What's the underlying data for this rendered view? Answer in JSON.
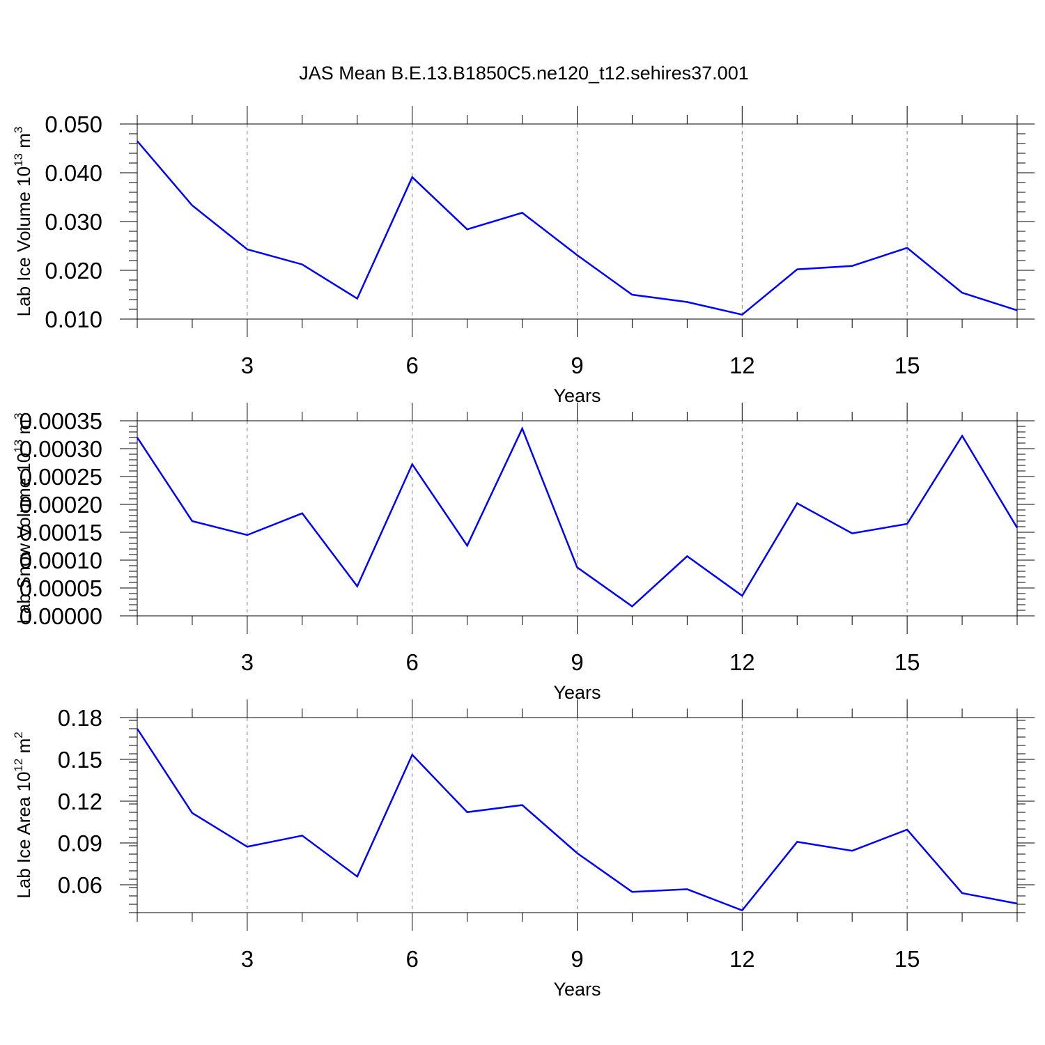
{
  "title": "JAS Mean B.E.13.B1850C5.ne120_t12.sehires37.001",
  "colors": {
    "series": "#0000ff",
    "axis": "#000000",
    "grid": "#808080"
  },
  "chart_data": [
    {
      "type": "line",
      "ylabel": {
        "main": "Lab Ice Volume 10",
        "exp": "13",
        "unit": " m",
        "unit_exp": "3"
      },
      "xlabel": "Years",
      "xlim": [
        1,
        17
      ],
      "ylim": [
        0.01,
        0.05
      ],
      "xticks": [
        3,
        6,
        9,
        12,
        15
      ],
      "xtick_labels": [
        "3",
        "6",
        "9",
        "12",
        "15"
      ],
      "yticks": [
        0.01,
        0.02,
        0.03,
        0.04,
        0.05
      ],
      "ytick_labels": [
        "0.010",
        "0.020",
        "0.030",
        "0.040",
        "0.050"
      ],
      "grid": "x-dashed",
      "x": [
        1,
        2,
        3,
        4,
        5,
        6,
        7,
        8,
        9,
        10,
        11,
        12,
        13,
        14,
        15,
        16,
        17
      ],
      "values": [
        0.0465,
        0.0333,
        0.0243,
        0.0212,
        0.0142,
        0.0391,
        0.0284,
        0.0318,
        0.0231,
        0.015,
        0.0135,
        0.0109,
        0.0202,
        0.0209,
        0.0246,
        0.0154,
        0.0118
      ]
    },
    {
      "type": "line",
      "ylabel": {
        "main": "Lab Snow Volume 10",
        "exp": "13",
        "unit": " m",
        "unit_exp": "3"
      },
      "xlabel": "Years",
      "xlim": [
        1,
        17
      ],
      "ylim": [
        0.0,
        0.00035
      ],
      "xticks": [
        3,
        6,
        9,
        12,
        15
      ],
      "xtick_labels": [
        "3",
        "6",
        "9",
        "12",
        "15"
      ],
      "yticks": [
        0.0,
        5e-05,
        0.0001,
        0.00015,
        0.0002,
        0.00025,
        0.0003,
        0.00035
      ],
      "ytick_labels": [
        "0.00000",
        "0.00005",
        "0.00010",
        "0.00015",
        "0.00020",
        "0.00025",
        "0.00030",
        "0.00035"
      ],
      "grid": "x-dashed",
      "x": [
        1,
        2,
        3,
        4,
        5,
        6,
        7,
        8,
        9,
        10,
        11,
        12,
        13,
        14,
        15,
        16,
        17
      ],
      "values": [
        0.00032,
        0.00017,
        0.000145,
        0.000184,
        5.3e-05,
        0.000272,
        0.000126,
        0.000336,
        8.7e-05,
        1.7e-05,
        0.000107,
        3.6e-05,
        0.000202,
        0.000148,
        0.000165,
        0.000323,
        0.000158
      ]
    },
    {
      "type": "line",
      "ylabel": {
        "main": "Lab Ice Area 10",
        "exp": "12",
        "unit": " m",
        "unit_exp": "2"
      },
      "xlabel": "Years",
      "xlim": [
        1,
        17
      ],
      "ylim": [
        0.04,
        0.18
      ],
      "xticks": [
        3,
        6,
        9,
        12,
        15
      ],
      "xtick_labels": [
        "3",
        "6",
        "9",
        "12",
        "15"
      ],
      "yticks": [
        0.06,
        0.09,
        0.12,
        0.15,
        0.18
      ],
      "ytick_labels": [
        "0.06",
        "0.09",
        "0.12",
        "0.15",
        "0.18"
      ],
      "grid": "x-dashed",
      "x": [
        1,
        2,
        3,
        4,
        5,
        6,
        7,
        8,
        9,
        10,
        11,
        12,
        13,
        14,
        15,
        16,
        17
      ],
      "values": [
        0.172,
        0.1115,
        0.0873,
        0.0953,
        0.0659,
        0.1533,
        0.1121,
        0.1172,
        0.0827,
        0.0549,
        0.0568,
        0.0416,
        0.0908,
        0.0844,
        0.0996,
        0.054,
        0.0465
      ]
    }
  ]
}
